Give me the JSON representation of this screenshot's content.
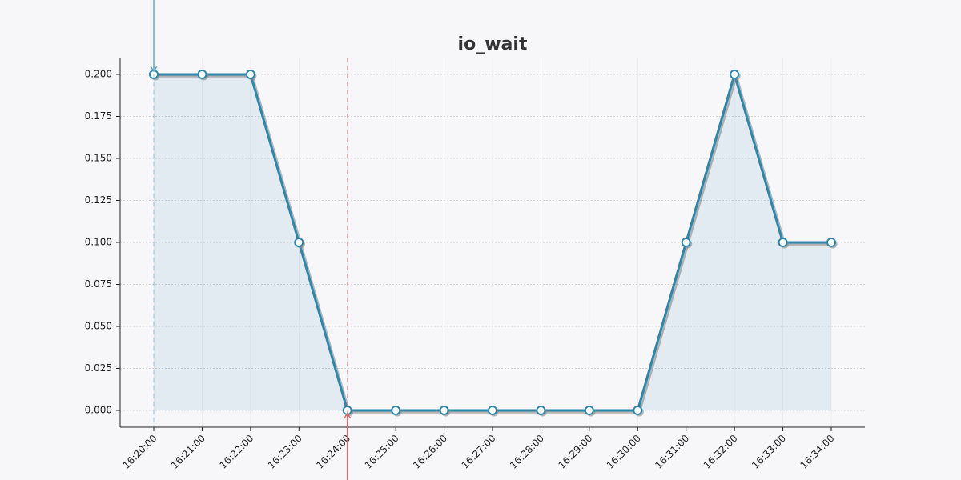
{
  "chart_data": {
    "type": "line",
    "title": "io_wait",
    "categories": [
      "16:20:00",
      "16:21:00",
      "16:22:00",
      "16:23:00",
      "16:24:00",
      "16:25:00",
      "16:26:00",
      "16:27:00",
      "16:28:00",
      "16:29:00",
      "16:30:00",
      "16:31:00",
      "16:32:00",
      "16:33:00",
      "16:34:00"
    ],
    "values": [
      0.2,
      0.2,
      0.2,
      0.1,
      0,
      0,
      0,
      0,
      0,
      0,
      0,
      0.1,
      0.2,
      0.1,
      0.1
    ],
    "color": "#2e86ab",
    "area": true,
    "grid": true,
    "ylim": [
      -0.01,
      0.21
    ],
    "yticks": [
      {
        "value": 0,
        "label": "0.000"
      },
      {
        "value": 0.025,
        "label": "0.025"
      },
      {
        "value": 0.05,
        "label": "0.050"
      },
      {
        "value": 0.075,
        "label": "0.075"
      },
      {
        "value": 0.1,
        "label": "0.100"
      },
      {
        "value": 0.125,
        "label": "0.125"
      },
      {
        "value": 0.15,
        "label": "0.150"
      },
      {
        "value": 0.175,
        "label": "0.175"
      },
      {
        "value": 0.2,
        "label": "0.200"
      }
    ],
    "vlines": [
      {
        "at": "16:20:00",
        "color": "#5fa8c9"
      },
      {
        "at": "16:24:00",
        "color": "#e06666"
      }
    ]
  }
}
